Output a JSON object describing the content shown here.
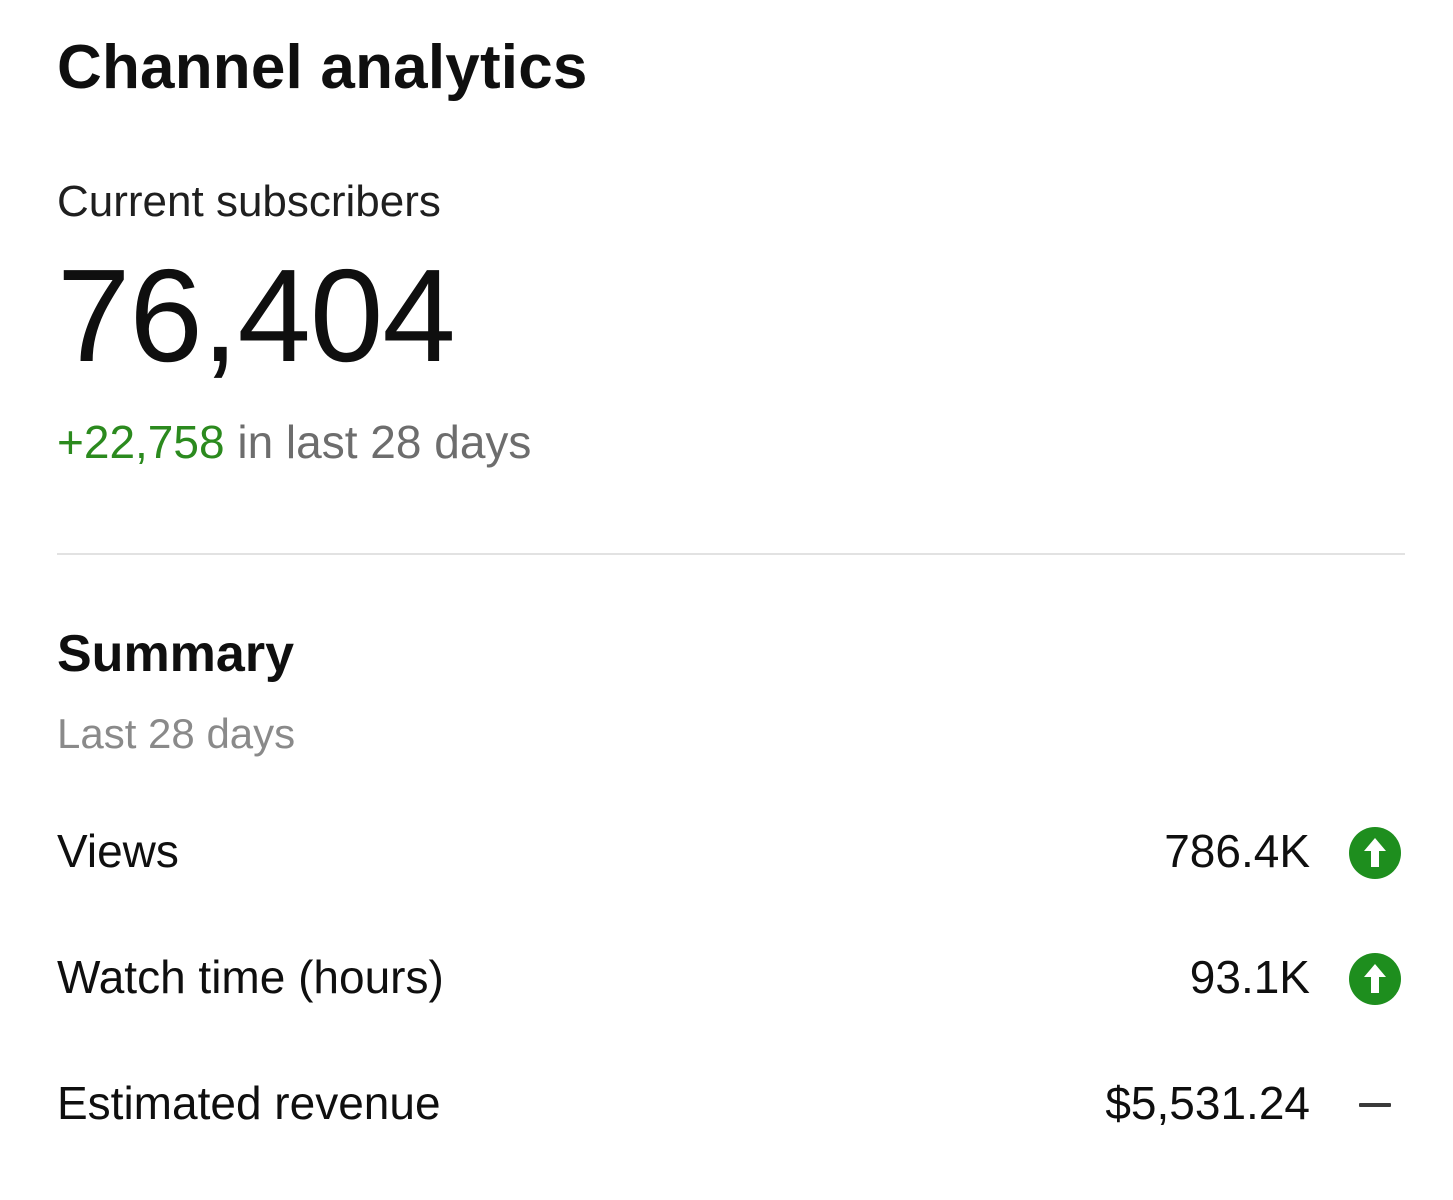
{
  "header": {
    "title": "Channel analytics"
  },
  "subscribers": {
    "label": "Current subscribers",
    "count": "76,404",
    "change_value": "+22,758",
    "change_suffix": " in last 28 days",
    "change_color": "#2b8a1e"
  },
  "summary": {
    "title": "Summary",
    "period": "Last 28 days",
    "metrics": [
      {
        "label": "Views",
        "value": "786.4K",
        "trend_icon": "arrow-up-circle-icon",
        "trend_color": "#1e8e1e"
      },
      {
        "label": "Watch time (hours)",
        "value": "93.1K",
        "trend_icon": "arrow-up-circle-icon",
        "trend_color": "#1e8e1e"
      },
      {
        "label": "Estimated revenue",
        "value": "$5,531.24",
        "trend_icon": "dash-icon",
        "trend_color": "#3a3a3a"
      }
    ]
  }
}
